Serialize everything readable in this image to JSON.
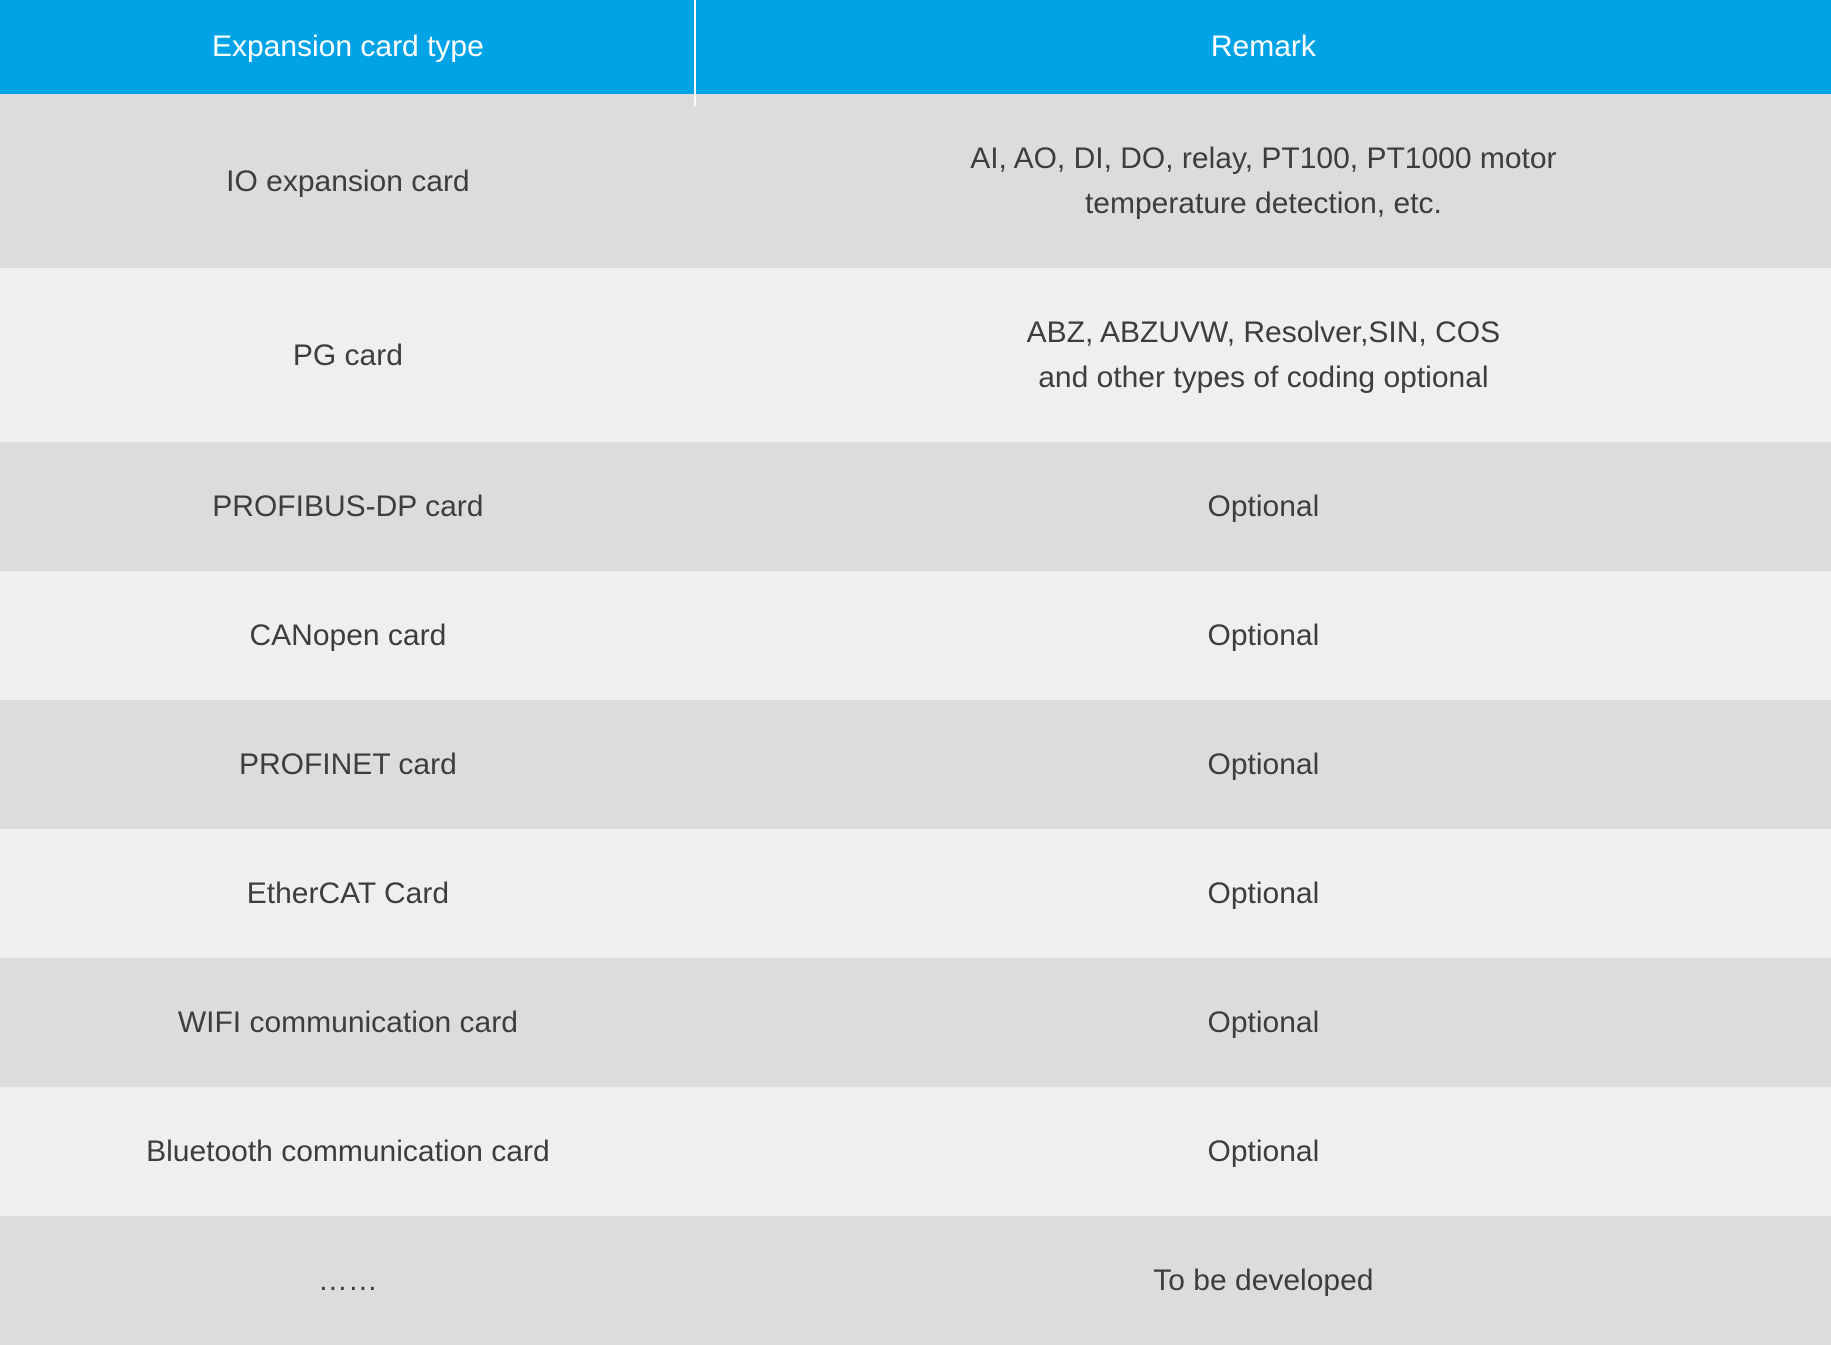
{
  "table": {
    "type": "table",
    "colors": {
      "header_bg": "#00a3e6",
      "header_text": "#ffffff",
      "row_odd_bg": "#dcdcdc",
      "row_even_bg": "#efefef",
      "body_text": "#3d3d3d",
      "separator": "#ffffff"
    },
    "typography": {
      "header_fontsize": 30,
      "body_fontsize": 30,
      "font_family": "Arial"
    },
    "layout": {
      "col_left_width_pct": 38,
      "col_right_width_pct": 62,
      "row_padding_v": 42,
      "row_padding_h": 30
    },
    "columns": [
      "Expansion card type",
      "Remark"
    ],
    "rows": [
      {
        "type": "IO expansion card",
        "remark": "AI, AO, DI, DO, relay, PT100, PT1000 motor\ntemperature detection, etc."
      },
      {
        "type": "PG card",
        "remark": "ABZ, ABZUVW, Resolver,SIN, COS\nand other types of coding optional"
      },
      {
        "type": "PROFIBUS-DP card",
        "remark": "Optional"
      },
      {
        "type": "CANopen card",
        "remark": "Optional"
      },
      {
        "type": "PROFINET card",
        "remark": "Optional"
      },
      {
        "type": "EtherCAT Card",
        "remark": "Optional"
      },
      {
        "type": "WIFI communication card",
        "remark": "Optional"
      },
      {
        "type": "Bluetooth communication card",
        "remark": "Optional"
      },
      {
        "type": "……",
        "remark": "To be developed"
      }
    ]
  }
}
